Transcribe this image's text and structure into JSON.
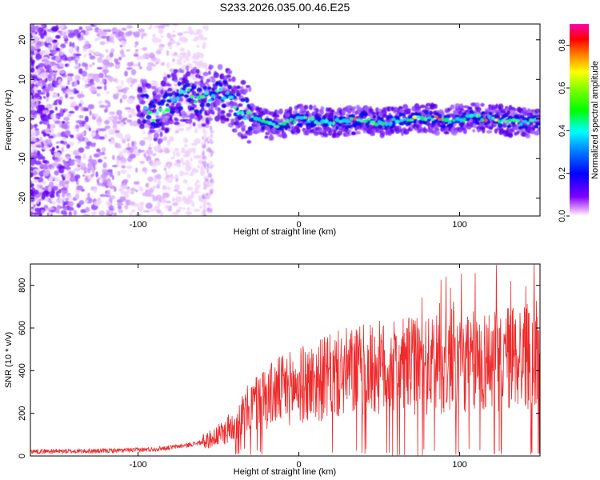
{
  "chart_data": [
    {
      "type": "heatmap",
      "title": "S233.2026.035.00.46.E25",
      "xlabel": "Height of straight line (km)",
      "ylabel": "Frequency (Hz)",
      "xlim": [
        -167,
        150
      ],
      "ylim": [
        -24.5,
        24
      ],
      "xticks": [
        -100,
        0,
        100
      ],
      "yticks": [
        -20,
        -10,
        0,
        10,
        20
      ],
      "colorbar": {
        "label": "Normalized spectral amplitude",
        "range": [
          0.0,
          0.9
        ],
        "ticks": [
          0.0,
          0.2,
          0.4,
          0.6,
          0.8
        ],
        "colormap": "rainbow",
        "colors": [
          "#ff00ff",
          "#0000ff",
          "#00ffff",
          "#00ff00",
          "#ffff00",
          "#ff0000",
          "#ff00aa"
        ]
      },
      "ridge": {
        "description_points_x": [
          -97,
          -92,
          -88,
          -82,
          -75,
          -68,
          -60,
          -52,
          -45,
          -38,
          -33,
          -28,
          -22,
          -15,
          -8,
          0,
          10,
          20,
          30,
          40,
          50,
          60,
          70,
          80,
          90,
          100,
          110,
          120,
          130,
          140,
          148
        ],
        "description_points_y": [
          3,
          2,
          0,
          4,
          6,
          6,
          5,
          7,
          6,
          3,
          2,
          0,
          -1,
          -1.5,
          -1,
          0,
          -0.5,
          -1,
          -0.5,
          0,
          -1,
          -0.5,
          0,
          0.5,
          -0.5,
          0,
          0.5,
          0,
          -0.5,
          -1,
          -0.5
        ]
      }
    },
    {
      "type": "line",
      "xlabel": "Height of straight line (km)",
      "ylabel": "SNR (10 * v/v)",
      "xlim": [
        -167,
        150
      ],
      "ylim": [
        0,
        900
      ],
      "xticks": [
        -100,
        0,
        100
      ],
      "yticks": [
        0,
        200,
        400,
        600,
        800
      ],
      "line_color": "#ee2a2a",
      "envelope_x": [
        -167,
        -140,
        -120,
        -100,
        -90,
        -80,
        -70,
        -60,
        -55,
        -50,
        -45,
        -40,
        -35,
        -30,
        -25,
        -20,
        -10,
        0,
        10,
        20,
        30,
        40,
        50,
        60,
        70,
        80,
        90,
        100,
        110,
        120,
        130,
        140,
        150
      ],
      "envelope_y": [
        22,
        22,
        24,
        28,
        32,
        40,
        50,
        65,
        80,
        95,
        120,
        150,
        190,
        230,
        260,
        280,
        310,
        330,
        350,
        370,
        390,
        400,
        410,
        410,
        420,
        420,
        430,
        430,
        440,
        450,
        460,
        470,
        470
      ]
    }
  ]
}
